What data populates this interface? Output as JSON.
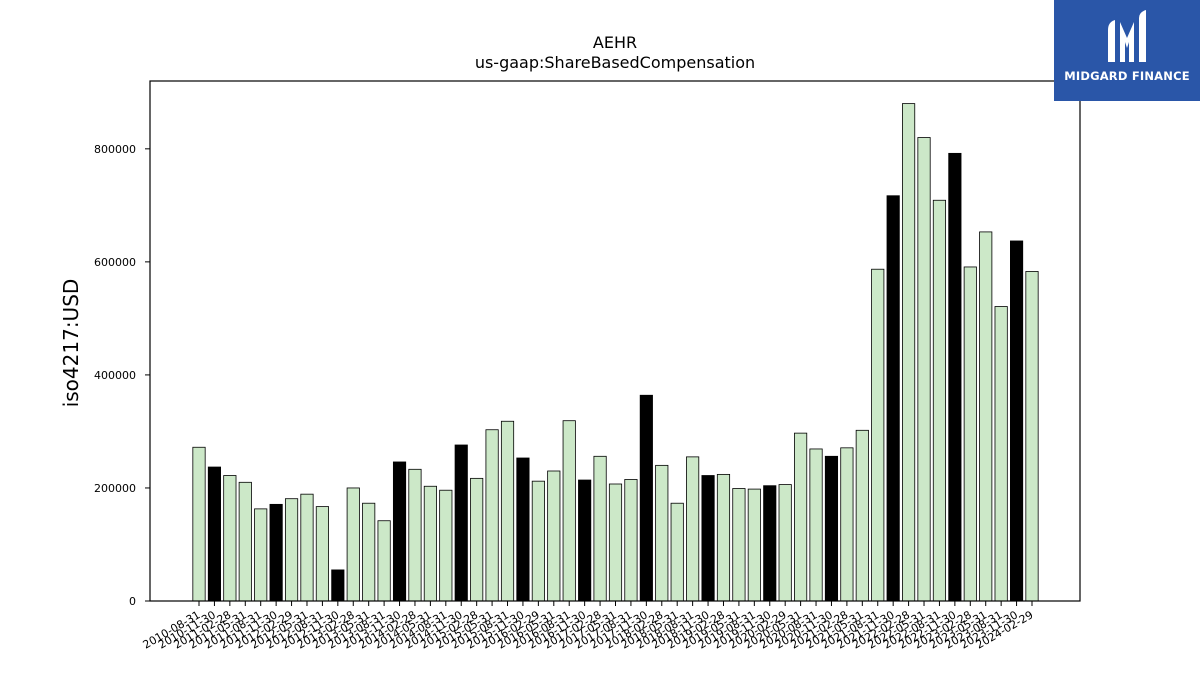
{
  "chart_data": {
    "type": "bar",
    "title": "AEHR",
    "subtitle": "us-gaap:ShareBasedCompensation",
    "xlabel": "",
    "ylabel": "iso4217:USD",
    "ylim": [
      0,
      920000
    ],
    "yticks": [
      0,
      200000,
      400000,
      600000,
      800000
    ],
    "grid": false,
    "colors": {
      "q": "#cce8c8",
      "fy": "#000000",
      "edge": "#000000"
    },
    "categories": [
      "2010-08-31",
      "2010-11-30",
      "2011-02-28",
      "2011-05-31",
      "2011-08-31",
      "2011-11-30",
      "2012-02-29",
      "2012-05-31",
      "2012-08-31",
      "2012-11-30",
      "2013-02-28",
      "2013-05-31",
      "2013-08-31",
      "2013-11-30",
      "2014-02-28",
      "2014-05-31",
      "2014-08-31",
      "2014-11-30",
      "2015-02-28",
      "2015-05-31",
      "2015-08-31",
      "2015-11-30",
      "2016-02-29",
      "2016-05-31",
      "2016-08-31",
      "2016-11-30",
      "2017-02-28",
      "2017-05-31",
      "2017-08-31",
      "2017-11-30",
      "2018-02-28",
      "2018-05-31",
      "2018-08-31",
      "2018-11-30",
      "2019-02-28",
      "2019-05-31",
      "2019-08-31",
      "2019-11-30",
      "2020-02-29",
      "2020-05-31",
      "2020-08-31",
      "2020-11-30",
      "2021-02-28",
      "2021-05-31",
      "2021-08-31",
      "2021-11-30",
      "2022-02-28",
      "2022-05-31",
      "2022-08-31",
      "2022-11-30",
      "2023-02-28",
      "2023-05-31",
      "2023-08-31",
      "2023-11-30",
      "2024-02-29"
    ],
    "values": [
      272000,
      237000,
      222000,
      210000,
      163000,
      171000,
      181000,
      189000,
      167000,
      55000,
      200000,
      173000,
      142000,
      246000,
      233000,
      203000,
      196000,
      276000,
      217000,
      303000,
      318000,
      253000,
      212000,
      230000,
      319000,
      214000,
      256000,
      207000,
      215000,
      364000,
      240000,
      173000,
      255000,
      222000,
      224000,
      199000,
      198000,
      204000,
      206000,
      297000,
      269000,
      256000,
      271000,
      302000,
      587000,
      717000,
      880000,
      820000,
      709000,
      792000,
      591000,
      653000,
      521000,
      637000,
      583000
    ],
    "fiscal_year_end": [
      false,
      true,
      false,
      false,
      false,
      true,
      false,
      false,
      false,
      true,
      false,
      false,
      false,
      true,
      false,
      false,
      false,
      true,
      false,
      false,
      false,
      true,
      false,
      false,
      false,
      true,
      false,
      false,
      false,
      true,
      false,
      false,
      false,
      true,
      false,
      false,
      false,
      true,
      false,
      false,
      false,
      true,
      false,
      false,
      false,
      true,
      false,
      false,
      false,
      true,
      false,
      false,
      false,
      true,
      false
    ]
  },
  "logo": {
    "text": "MIDGARD FINANCE",
    "bg": "#2a56a8"
  }
}
